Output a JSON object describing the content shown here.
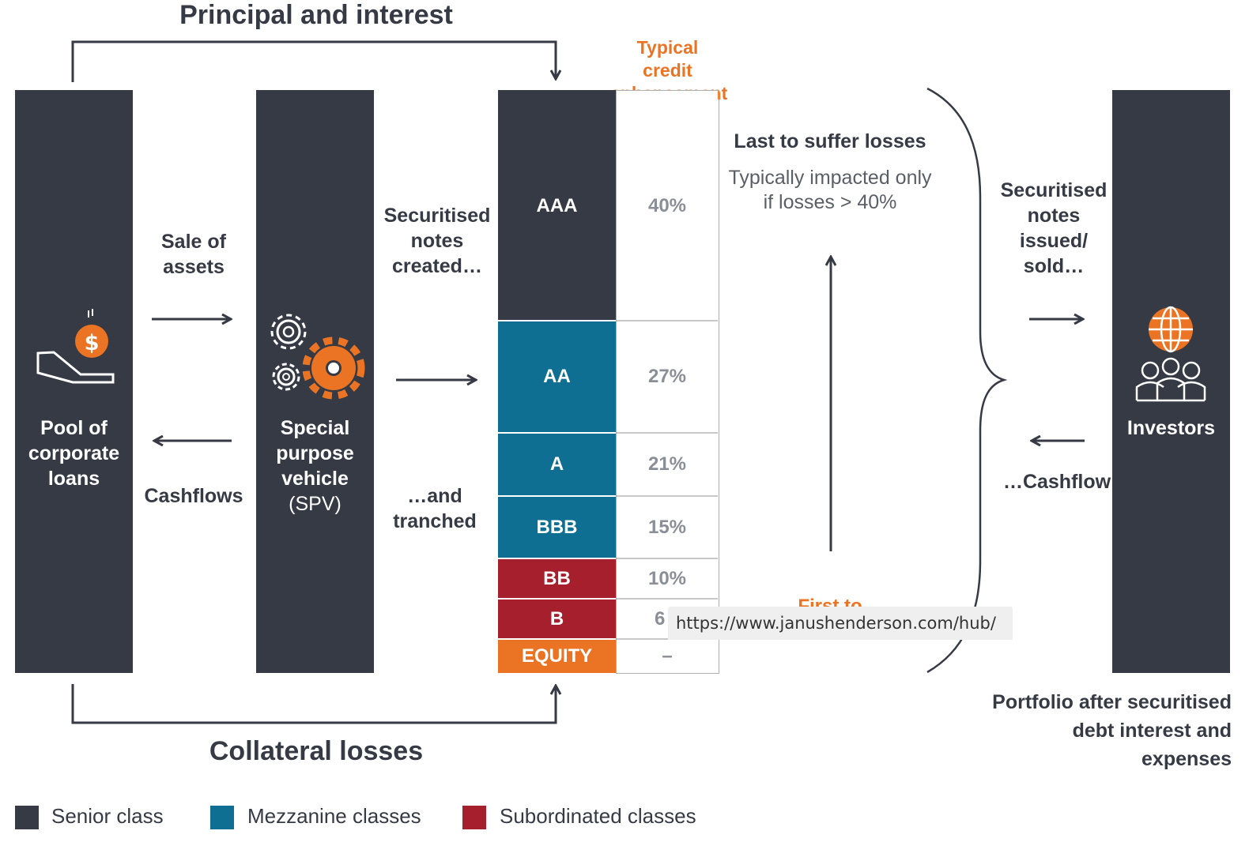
{
  "top_flow_label": "Principal and interest",
  "bottom_flow_label": "Collateral losses",
  "credit_header": "Typical credit enhancement",
  "pool_label": [
    "Pool of",
    "corporate",
    "loans"
  ],
  "spv_label": [
    "Special",
    "purpose",
    "vehicle",
    "(SPV)"
  ],
  "sale_label": [
    "Sale of",
    "assets"
  ],
  "cashflows_label": "Cashflows",
  "notes_created_label": [
    "Securitised",
    "notes",
    "created…"
  ],
  "tranched_label": [
    "…and",
    "tranched"
  ],
  "tranches": [
    {
      "name": "AAA",
      "enhancement": "40%",
      "class": "senior"
    },
    {
      "name": "AA",
      "enhancement": "27%",
      "class": "mezzanine"
    },
    {
      "name": "A",
      "enhancement": "21%",
      "class": "mezzanine"
    },
    {
      "name": "BBB",
      "enhancement": "15%",
      "class": "mezzanine"
    },
    {
      "name": "BB",
      "enhancement": "10%",
      "class": "subordinated"
    },
    {
      "name": "B",
      "enhancement": "6",
      "class": "subordinated"
    },
    {
      "name": "EQUITY",
      "enhancement": "–",
      "class": "equity"
    }
  ],
  "last_losses_title": "Last to suffer losses",
  "last_losses_desc": [
    "Typically impacted only",
    "if losses > 40%"
  ],
  "first_losses_partial": "First to",
  "notes_issued_label": [
    "Securitised",
    "notes",
    "issued/",
    "sold…"
  ],
  "investor_cashflow_label": "…Cashflow",
  "investors_label": "Investors",
  "portfolio_label": [
    "Portfolio after securitised",
    "debt interest and expenses"
  ],
  "url_tooltip": "https://www.janushenderson.com/hub/",
  "legend": [
    {
      "label": "Senior class",
      "color": "#363a44"
    },
    {
      "label": "Mezzanine classes",
      "color": "#0e6f93"
    },
    {
      "label": "Subordinated classes",
      "color": "#a51f2d"
    }
  ],
  "colors": {
    "senior": "#363a44",
    "mezzanine": "#0e6f93",
    "subordinated": "#a51f2d",
    "equity": "#ea7423",
    "accent": "#ea7423"
  }
}
